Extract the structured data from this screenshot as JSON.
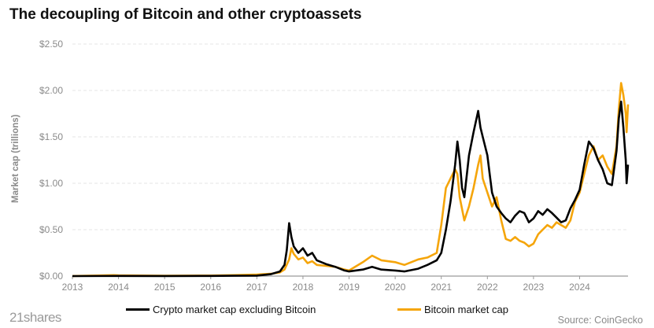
{
  "title": "The decoupling of Bitcoin and other cryptoassets",
  "logo_text": "21shares",
  "source": "Source: CoinGecko",
  "colors": {
    "crypto_ex_btc": "#000000",
    "bitcoin": "#f5a50a",
    "grid": "#e6e6e6",
    "axis_text": "#8a8a8a"
  },
  "chart_data": {
    "type": "line",
    "ylabel": "Market cap (trillions)",
    "xlabel": "",
    "xlim": [
      2013,
      2025.05
    ],
    "ylim": [
      0,
      2.5
    ],
    "grid": true,
    "legend_position": "bottom",
    "x_ticks": [
      "2013",
      "2014",
      "2015",
      "2016",
      "2017",
      "2018",
      "2019",
      "2020",
      "2021",
      "2022",
      "2023",
      "2024"
    ],
    "y_ticks": [
      "$0.00",
      "$0.50",
      "$1.00",
      "$1.50",
      "$2.00",
      "$2.50"
    ],
    "series": [
      {
        "name": "Crypto market cap excluding Bitcoin",
        "color": "#000000",
        "points": [
          [
            2013.0,
            0.0
          ],
          [
            2014.0,
            0.002
          ],
          [
            2015.0,
            0.001
          ],
          [
            2016.0,
            0.002
          ],
          [
            2016.5,
            0.003
          ],
          [
            2017.0,
            0.005
          ],
          [
            2017.3,
            0.02
          ],
          [
            2017.5,
            0.05
          ],
          [
            2017.6,
            0.12
          ],
          [
            2017.65,
            0.28
          ],
          [
            2017.7,
            0.57
          ],
          [
            2017.75,
            0.42
          ],
          [
            2017.8,
            0.32
          ],
          [
            2017.9,
            0.25
          ],
          [
            2018.0,
            0.3
          ],
          [
            2018.1,
            0.22
          ],
          [
            2018.2,
            0.25
          ],
          [
            2018.3,
            0.17
          ],
          [
            2018.5,
            0.13
          ],
          [
            2018.7,
            0.1
          ],
          [
            2018.9,
            0.06
          ],
          [
            2019.0,
            0.05
          ],
          [
            2019.3,
            0.07
          ],
          [
            2019.5,
            0.1
          ],
          [
            2019.7,
            0.07
          ],
          [
            2020.0,
            0.06
          ],
          [
            2020.2,
            0.05
          ],
          [
            2020.5,
            0.08
          ],
          [
            2020.7,
            0.12
          ],
          [
            2020.9,
            0.17
          ],
          [
            2021.0,
            0.25
          ],
          [
            2021.1,
            0.5
          ],
          [
            2021.2,
            0.8
          ],
          [
            2021.3,
            1.2
          ],
          [
            2021.35,
            1.45
          ],
          [
            2021.4,
            1.25
          ],
          [
            2021.45,
            0.95
          ],
          [
            2021.5,
            0.85
          ],
          [
            2021.6,
            1.3
          ],
          [
            2021.7,
            1.55
          ],
          [
            2021.8,
            1.78
          ],
          [
            2021.85,
            1.6
          ],
          [
            2021.9,
            1.5
          ],
          [
            2022.0,
            1.3
          ],
          [
            2022.05,
            1.1
          ],
          [
            2022.1,
            0.9
          ],
          [
            2022.2,
            0.75
          ],
          [
            2022.3,
            0.68
          ],
          [
            2022.4,
            0.62
          ],
          [
            2022.5,
            0.58
          ],
          [
            2022.6,
            0.65
          ],
          [
            2022.7,
            0.7
          ],
          [
            2022.8,
            0.68
          ],
          [
            2022.9,
            0.58
          ],
          [
            2023.0,
            0.62
          ],
          [
            2023.1,
            0.7
          ],
          [
            2023.2,
            0.66
          ],
          [
            2023.3,
            0.72
          ],
          [
            2023.4,
            0.68
          ],
          [
            2023.5,
            0.63
          ],
          [
            2023.6,
            0.58
          ],
          [
            2023.7,
            0.6
          ],
          [
            2023.8,
            0.73
          ],
          [
            2023.9,
            0.82
          ],
          [
            2024.0,
            0.93
          ],
          [
            2024.1,
            1.2
          ],
          [
            2024.2,
            1.45
          ],
          [
            2024.3,
            1.38
          ],
          [
            2024.4,
            1.25
          ],
          [
            2024.5,
            1.15
          ],
          [
            2024.6,
            1.0
          ],
          [
            2024.7,
            0.98
          ],
          [
            2024.8,
            1.35
          ],
          [
            2024.85,
            1.7
          ],
          [
            2024.9,
            1.88
          ],
          [
            2024.95,
            1.6
          ],
          [
            2025.0,
            1.25
          ],
          [
            2025.02,
            1.0
          ],
          [
            2025.05,
            1.2
          ]
        ]
      },
      {
        "name": "Bitcoin market cap",
        "color": "#f5a50a",
        "points": [
          [
            2013.0,
            0.001
          ],
          [
            2013.9,
            0.01
          ],
          [
            2014.0,
            0.008
          ],
          [
            2015.0,
            0.004
          ],
          [
            2016.0,
            0.006
          ],
          [
            2016.5,
            0.01
          ],
          [
            2017.0,
            0.016
          ],
          [
            2017.3,
            0.025
          ],
          [
            2017.5,
            0.04
          ],
          [
            2017.6,
            0.07
          ],
          [
            2017.7,
            0.18
          ],
          [
            2017.75,
            0.3
          ],
          [
            2017.8,
            0.24
          ],
          [
            2017.9,
            0.18
          ],
          [
            2018.0,
            0.2
          ],
          [
            2018.1,
            0.14
          ],
          [
            2018.2,
            0.16
          ],
          [
            2018.3,
            0.12
          ],
          [
            2018.5,
            0.11
          ],
          [
            2018.7,
            0.1
          ],
          [
            2018.9,
            0.07
          ],
          [
            2019.0,
            0.06
          ],
          [
            2019.3,
            0.15
          ],
          [
            2019.5,
            0.22
          ],
          [
            2019.7,
            0.17
          ],
          [
            2020.0,
            0.15
          ],
          [
            2020.2,
            0.12
          ],
          [
            2020.5,
            0.18
          ],
          [
            2020.7,
            0.2
          ],
          [
            2020.9,
            0.25
          ],
          [
            2021.0,
            0.55
          ],
          [
            2021.1,
            0.95
          ],
          [
            2021.2,
            1.05
          ],
          [
            2021.3,
            1.15
          ],
          [
            2021.35,
            1.1
          ],
          [
            2021.4,
            0.85
          ],
          [
            2021.5,
            0.6
          ],
          [
            2021.6,
            0.75
          ],
          [
            2021.7,
            0.95
          ],
          [
            2021.8,
            1.2
          ],
          [
            2021.85,
            1.3
          ],
          [
            2021.9,
            1.05
          ],
          [
            2022.0,
            0.9
          ],
          [
            2022.1,
            0.75
          ],
          [
            2022.2,
            0.85
          ],
          [
            2022.3,
            0.6
          ],
          [
            2022.4,
            0.4
          ],
          [
            2022.5,
            0.38
          ],
          [
            2022.6,
            0.42
          ],
          [
            2022.7,
            0.38
          ],
          [
            2022.8,
            0.36
          ],
          [
            2022.9,
            0.32
          ],
          [
            2023.0,
            0.35
          ],
          [
            2023.1,
            0.45
          ],
          [
            2023.2,
            0.5
          ],
          [
            2023.3,
            0.55
          ],
          [
            2023.4,
            0.52
          ],
          [
            2023.5,
            0.58
          ],
          [
            2023.6,
            0.55
          ],
          [
            2023.7,
            0.52
          ],
          [
            2023.8,
            0.6
          ],
          [
            2023.9,
            0.8
          ],
          [
            2024.0,
            0.9
          ],
          [
            2024.1,
            1.1
          ],
          [
            2024.2,
            1.3
          ],
          [
            2024.3,
            1.4
          ],
          [
            2024.4,
            1.25
          ],
          [
            2024.5,
            1.3
          ],
          [
            2024.6,
            1.18
          ],
          [
            2024.7,
            1.1
          ],
          [
            2024.8,
            1.4
          ],
          [
            2024.85,
            1.8
          ],
          [
            2024.9,
            2.08
          ],
          [
            2024.95,
            1.95
          ],
          [
            2025.0,
            1.75
          ],
          [
            2025.02,
            1.55
          ],
          [
            2025.05,
            1.85
          ]
        ]
      }
    ]
  }
}
